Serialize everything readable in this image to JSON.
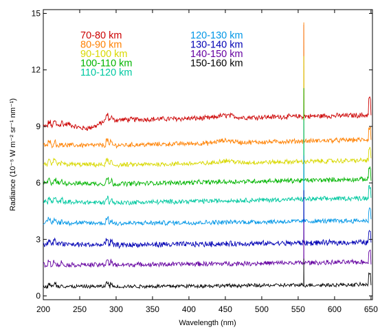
{
  "chart_data": {
    "type": "line",
    "title": "",
    "xlabel": "Wavelength (nm)",
    "ylabel": "Radiance (10⁻⁵ W m⁻² sr⁻¹ nm⁻¹)",
    "xlim": [
      200,
      652
    ],
    "ylim": [
      -0.2,
      15.2
    ],
    "x_ticks": [
      200,
      250,
      300,
      350,
      400,
      450,
      500,
      550,
      600,
      650
    ],
    "y_ticks": [
      0,
      3,
      6,
      9,
      12,
      15
    ],
    "grid": false,
    "legend_position": "top-left, two columns",
    "series": [
      {
        "name": "70-80 km",
        "color": "#cc0000",
        "start": 9.0,
        "mid": 9.35,
        "end": 9.6,
        "noise": 0.12
      },
      {
        "name": "80-90 km",
        "color": "#ff8000",
        "start": 8.0,
        "mid": 8.0,
        "end": 8.3,
        "noise": 0.11
      },
      {
        "name": "90-100 km",
        "color": "#d8d800",
        "start": 7.0,
        "mid": 6.95,
        "end": 7.2,
        "noise": 0.11
      },
      {
        "name": "100-110 km",
        "color": "#00b400",
        "start": 6.0,
        "mid": 5.95,
        "end": 6.2,
        "noise": 0.11
      },
      {
        "name": "110-120 km",
        "color": "#00c8a0",
        "start": 5.0,
        "mid": 4.95,
        "end": 5.2,
        "noise": 0.11
      },
      {
        "name": "120-130 km",
        "color": "#0096e6",
        "start": 3.9,
        "mid": 3.85,
        "end": 4.0,
        "noise": 0.11
      },
      {
        "name": "130-140 km",
        "color": "#0000b4",
        "start": 2.75,
        "mid": 2.7,
        "end": 2.85,
        "noise": 0.13
      },
      {
        "name": "140-150 km",
        "color": "#6400a0",
        "start": 1.65,
        "mid": 1.65,
        "end": 1.8,
        "noise": 0.11
      },
      {
        "name": "150-160 km",
        "color": "#000000",
        "start": 0.5,
        "mid": 0.5,
        "end": 0.6,
        "noise": 0.09
      }
    ],
    "features": {
      "emission_line_nm": 557.7,
      "emission_peak_top": 14.4,
      "red_line_nm": 648
    }
  }
}
